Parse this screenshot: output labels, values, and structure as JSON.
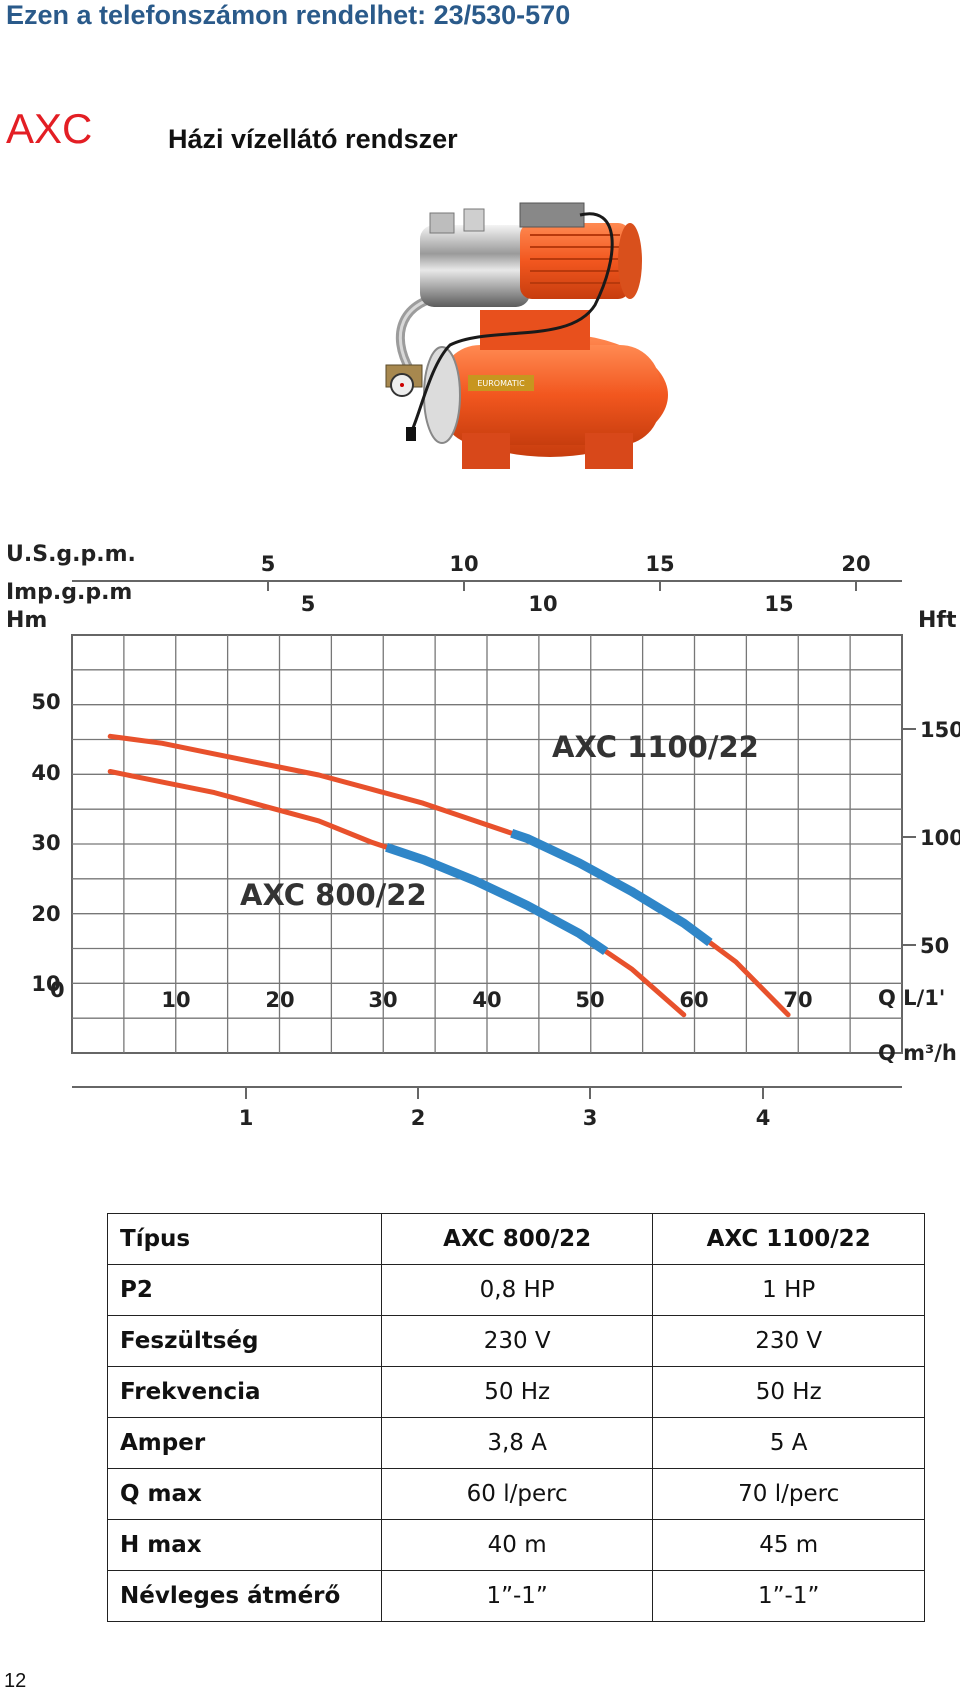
{
  "header": {
    "phone_line": "Ezen a telefonszámon rendelhet: 23/530-570",
    "model": "AXC",
    "subtitle": "Házi vízellátó rendszer"
  },
  "product_image": {
    "logo_text": "EUROMATIC"
  },
  "colors": {
    "accent_red": "#e31e24",
    "header_blue": "#2a5a8a",
    "curve_red": "#e8512c",
    "curve_blue": "#2f86c8"
  },
  "chart_data": {
    "type": "line",
    "title": "",
    "axes": {
      "left_label": "Hm",
      "right_label": "Hft",
      "top_label_1": "U.S.g.p.m.",
      "top_label_2": "Imp.g.p.m",
      "bottom_label_1": "Q L/1'",
      "bottom_label_2": "Q m³/h",
      "origin_label": "0"
    },
    "x_lpm_ticks": [
      "10",
      "20",
      "30",
      "40",
      "50",
      "60",
      "70"
    ],
    "x_m3h_ticks": [
      "1",
      "2",
      "3",
      "4"
    ],
    "top_usgpm_ticks": [
      "5",
      "10",
      "15",
      "20"
    ],
    "top_impgpm_ticks": [
      "5",
      "10",
      "15"
    ],
    "y_m_ticks": [
      "10",
      "20",
      "30",
      "40",
      "50"
    ],
    "y_ft_ticks": [
      "50",
      "100",
      "150"
    ],
    "xlim": [
      0,
      80
    ],
    "ylim": [
      0,
      56
    ],
    "series": [
      {
        "name": "AXC 800/22",
        "x": [
          5,
          10,
          15,
          20,
          25,
          30,
          35,
          40,
          45,
          50,
          55,
          60
        ],
        "y": [
          40,
          38.5,
          37,
          35,
          33,
          30,
          27.5,
          24.5,
          21,
          17,
          12,
          5.5
        ],
        "operating_range": [
          31.5,
          52.5
        ]
      },
      {
        "name": "AXC 1100/22",
        "x": [
          5,
          10,
          15,
          20,
          25,
          30,
          35,
          40,
          45,
          50,
          55,
          60,
          65,
          70
        ],
        "y": [
          45,
          44,
          42.5,
          41,
          39.5,
          37.5,
          35.5,
          33,
          30.5,
          27,
          23,
          18.5,
          13,
          5.5
        ],
        "operating_range": [
          43.5,
          62.5
        ]
      }
    ]
  },
  "table": {
    "rows": [
      {
        "label": "Típus",
        "a": "AXC 800/22",
        "b": "AXC 1100/22"
      },
      {
        "label": "P2",
        "a": "0,8 HP",
        "b": "1 HP"
      },
      {
        "label": "Feszültség",
        "a": "230 V",
        "b": "230 V"
      },
      {
        "label": "Frekvencia",
        "a": "50 Hz",
        "b": "50 Hz"
      },
      {
        "label": "Amper",
        "a": "3,8 A",
        "b": "5 A"
      },
      {
        "label": "Q max",
        "a": "60 l/perc",
        "b": "70 l/perc"
      },
      {
        "label": "H max",
        "a": "40 m",
        "b": "45 m"
      },
      {
        "label": "Névleges átmérő",
        "a": "1”-1”",
        "b": "1”-1”"
      }
    ]
  },
  "footer": {
    "page_number": "12"
  }
}
